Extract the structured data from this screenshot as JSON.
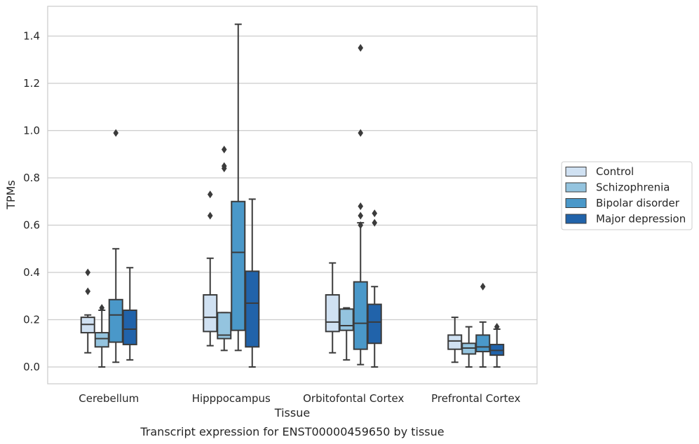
{
  "caption": "Transcript expression for ENST00000459650 by tissue",
  "chart_data": {
    "type": "box",
    "xlabel": "Tissue",
    "ylabel": "TPMs",
    "ylim": [
      -0.07,
      1.53
    ],
    "yticks": [
      "0.0",
      "0.2",
      "0.4",
      "0.6",
      "0.8",
      "1.0",
      "1.2",
      "1.4"
    ],
    "grid": "horizontal",
    "legend_position": "right",
    "categories": [
      "Cerebellum",
      "Hipppocampus",
      "Orbitofontal Cortex",
      "Prefrontal Cortex"
    ],
    "series": [
      {
        "name": "Control",
        "color": "#d0e1f2",
        "boxes": [
          {
            "whislo": 0.06,
            "q1": 0.145,
            "med": 0.18,
            "q3": 0.21,
            "whishi": 0.22,
            "fliers": [
              0.32,
              0.4
            ]
          },
          {
            "whislo": 0.09,
            "q1": 0.15,
            "med": 0.21,
            "q3": 0.305,
            "whishi": 0.46,
            "fliers": [
              0.64,
              0.73
            ]
          },
          {
            "whislo": 0.06,
            "q1": 0.15,
            "med": 0.19,
            "q3": 0.305,
            "whishi": 0.44,
            "fliers": []
          },
          {
            "whislo": 0.02,
            "q1": 0.075,
            "med": 0.11,
            "q3": 0.135,
            "whishi": 0.21,
            "fliers": []
          }
        ]
      },
      {
        "name": "Schizophrenia",
        "color": "#94c4df",
        "boxes": [
          {
            "whislo": 0.0,
            "q1": 0.085,
            "med": 0.12,
            "q3": 0.145,
            "whishi": 0.24,
            "fliers": [
              0.25
            ]
          },
          {
            "whislo": 0.07,
            "q1": 0.12,
            "med": 0.135,
            "q3": 0.23,
            "whishi": 0.23,
            "fliers": [
              0.84,
              0.85,
              0.92
            ]
          },
          {
            "whislo": 0.03,
            "q1": 0.155,
            "med": 0.175,
            "q3": 0.245,
            "whishi": 0.25,
            "fliers": []
          },
          {
            "whislo": 0.0,
            "q1": 0.055,
            "med": 0.08,
            "q3": 0.1,
            "whishi": 0.17,
            "fliers": []
          }
        ]
      },
      {
        "name": "Bipolar disorder",
        "color": "#4a98c9",
        "boxes": [
          {
            "whislo": 0.02,
            "q1": 0.105,
            "med": 0.22,
            "q3": 0.285,
            "whishi": 0.5,
            "fliers": [
              0.99
            ]
          },
          {
            "whislo": 0.07,
            "q1": 0.155,
            "med": 0.485,
            "q3": 0.7,
            "whishi": 1.45,
            "fliers": []
          },
          {
            "whislo": 0.01,
            "q1": 0.075,
            "med": 0.185,
            "q3": 0.36,
            "whishi": 0.61,
            "fliers": [
              0.6,
              0.64,
              0.68,
              0.99,
              1.35
            ]
          },
          {
            "whislo": 0.0,
            "q1": 0.065,
            "med": 0.085,
            "q3": 0.135,
            "whishi": 0.19,
            "fliers": [
              0.34
            ]
          }
        ]
      },
      {
        "name": "Major depression",
        "color": "#2163aa",
        "boxes": [
          {
            "whislo": 0.03,
            "q1": 0.095,
            "med": 0.16,
            "q3": 0.24,
            "whishi": 0.42,
            "fliers": []
          },
          {
            "whislo": 0.0,
            "q1": 0.085,
            "med": 0.27,
            "q3": 0.405,
            "whishi": 0.71,
            "fliers": []
          },
          {
            "whislo": 0.0,
            "q1": 0.1,
            "med": 0.19,
            "q3": 0.265,
            "whishi": 0.34,
            "fliers": [
              0.61,
              0.65
            ]
          },
          {
            "whislo": 0.0,
            "q1": 0.05,
            "med": 0.07,
            "q3": 0.095,
            "whishi": 0.16,
            "fliers": [
              0.17
            ]
          }
        ]
      }
    ]
  }
}
